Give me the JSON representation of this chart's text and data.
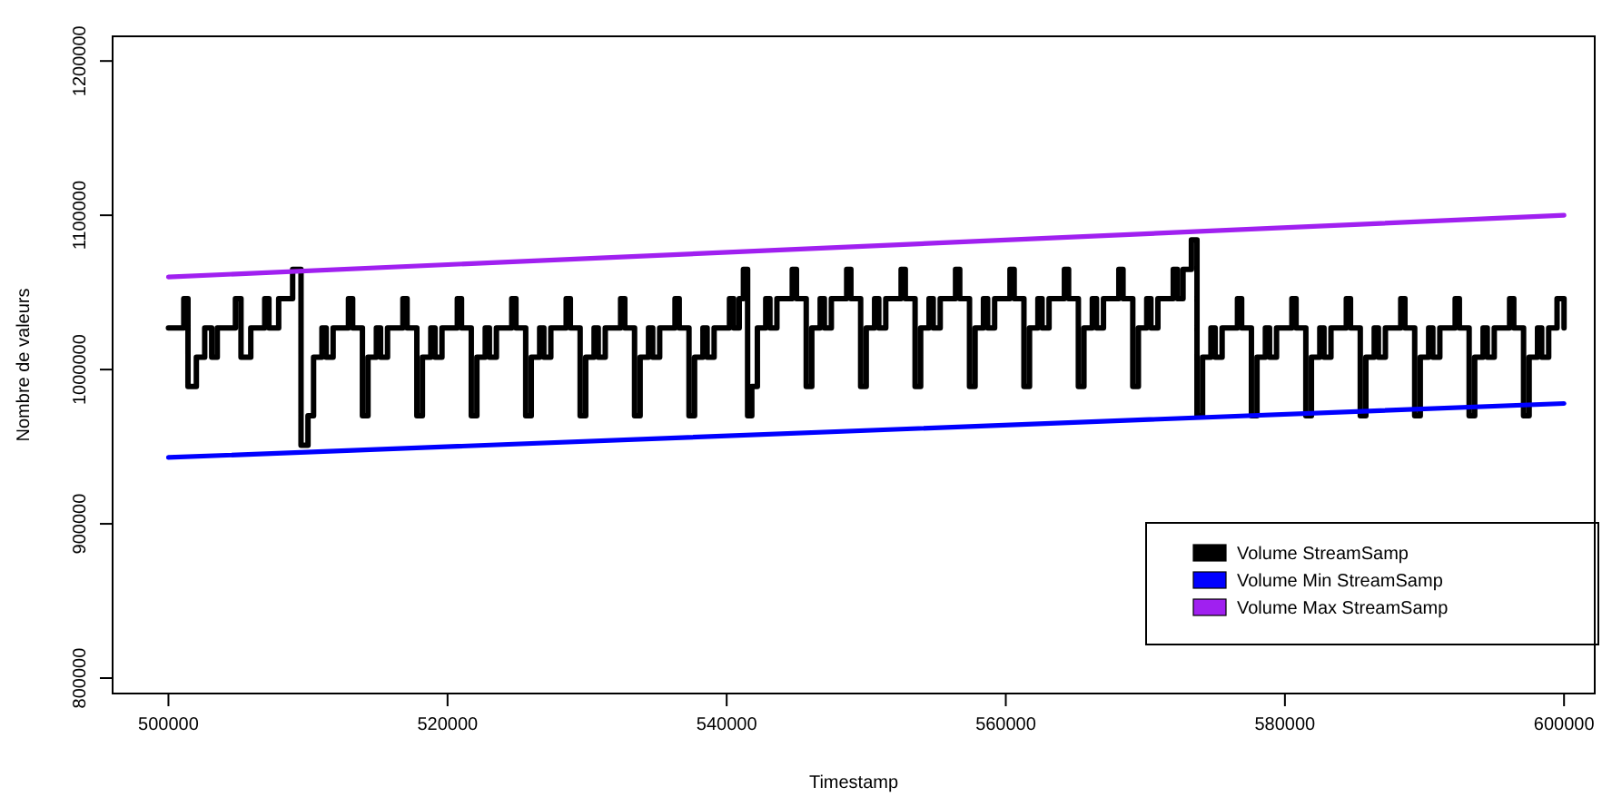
{
  "chart_data": {
    "type": "line",
    "xlabel": "Timestamp",
    "ylabel": "Nombre de valeurs",
    "xlim": [
      496000,
      602200
    ],
    "xticks": [
      500000,
      520000,
      540000,
      560000,
      580000,
      600000
    ],
    "ylim": [
      790000,
      1216000
    ],
    "yticks": [
      800000,
      900000,
      1000000,
      1100000,
      1200000
    ],
    "grid": false,
    "legend": "bottom right",
    "marker": "none",
    "line_style": "solid",
    "series": [
      {
        "name": "Volume StreamSamp",
        "color": "#000000",
        "type": "step",
        "x": [
          500000,
          501100,
          501400,
          502000,
          502600,
          503100,
          503500,
          504800,
          505200,
          505900,
          506900,
          507200,
          507900,
          508900,
          509500,
          510000,
          510400,
          511000,
          511300,
          511800,
          512900,
          513200,
          513900,
          514300,
          514900,
          515200,
          515700,
          516800,
          517100,
          517800,
          518200,
          518800,
          519100,
          519600,
          520700,
          521000,
          521700,
          522100,
          522700,
          523000,
          523500,
          524600,
          524900,
          525600,
          526000,
          526600,
          526900,
          527400,
          528500,
          528800,
          529500,
          529900,
          530500,
          530800,
          531300,
          532400,
          532700,
          533400,
          533800,
          534400,
          534700,
          535200,
          536300,
          536600,
          537300,
          537700,
          538300,
          538600,
          539100,
          540200,
          540500,
          540900,
          541200,
          541500,
          541800,
          542200,
          542800,
          543100,
          543600,
          544700,
          545000,
          545700,
          546100,
          546700,
          547000,
          547500,
          548600,
          548900,
          549600,
          550000,
          550600,
          550900,
          551400,
          552500,
          552800,
          553500,
          553900,
          554500,
          554800,
          555300,
          556400,
          556700,
          557400,
          557800,
          558400,
          558700,
          559200,
          560300,
          560600,
          561300,
          561700,
          562300,
          562600,
          563100,
          564200,
          564500,
          565200,
          565600,
          566200,
          566500,
          567000,
          568100,
          568400,
          569100,
          569500,
          570100,
          570400,
          570900,
          572000,
          572300,
          572700,
          573300,
          573700,
          574100,
          574700,
          575000,
          575500,
          576600,
          576900,
          577600,
          578000,
          578600,
          578900,
          579400,
          580500,
          580800,
          581500,
          581900,
          582500,
          582800,
          583300,
          584400,
          584700,
          585400,
          585800,
          586400,
          586700,
          587200,
          588300,
          588600,
          589300,
          589700,
          590300,
          590600,
          591100,
          592200,
          592500,
          593200,
          593600,
          594200,
          594500,
          595000,
          596100,
          596400,
          597100,
          597500,
          598100,
          598400,
          598900,
          599500,
          600000
        ],
        "values": [
          1027000,
          1046000,
          989000,
          1008000,
          1027000,
          1008000,
          1027000,
          1046000,
          1008000,
          1027000,
          1046000,
          1027000,
          1046000,
          1065000,
          951000,
          970000,
          1008000,
          1027000,
          1008000,
          1027000,
          1046000,
          1027000,
          970000,
          1008000,
          1027000,
          1008000,
          1027000,
          1046000,
          1027000,
          970000,
          1008000,
          1027000,
          1008000,
          1027000,
          1046000,
          1027000,
          970000,
          1008000,
          1027000,
          1008000,
          1027000,
          1046000,
          1027000,
          970000,
          1008000,
          1027000,
          1008000,
          1027000,
          1046000,
          1027000,
          970000,
          1008000,
          1027000,
          1008000,
          1027000,
          1046000,
          1027000,
          970000,
          1008000,
          1027000,
          1008000,
          1027000,
          1046000,
          1027000,
          970000,
          1008000,
          1027000,
          1008000,
          1027000,
          1046000,
          1027000,
          1046000,
          1065000,
          970000,
          989000,
          1027000,
          1046000,
          1027000,
          1046000,
          1065000,
          1046000,
          989000,
          1027000,
          1046000,
          1027000,
          1046000,
          1065000,
          1046000,
          989000,
          1027000,
          1046000,
          1027000,
          1046000,
          1065000,
          1046000,
          989000,
          1027000,
          1046000,
          1027000,
          1046000,
          1065000,
          1046000,
          989000,
          1027000,
          1046000,
          1027000,
          1046000,
          1065000,
          1046000,
          989000,
          1027000,
          1046000,
          1027000,
          1046000,
          1065000,
          1046000,
          989000,
          1027000,
          1046000,
          1027000,
          1046000,
          1065000,
          1046000,
          989000,
          1027000,
          1046000,
          1027000,
          1046000,
          1065000,
          1046000,
          1065000,
          1084000,
          970000,
          1008000,
          1027000,
          1008000,
          1027000,
          1046000,
          1027000,
          970000,
          1008000,
          1027000,
          1008000,
          1027000,
          1046000,
          1027000,
          970000,
          1008000,
          1027000,
          1008000,
          1027000,
          1046000,
          1027000,
          970000,
          1008000,
          1027000,
          1008000,
          1027000,
          1046000,
          1027000,
          970000,
          1008000,
          1027000,
          1008000,
          1027000,
          1046000,
          1027000,
          970000,
          1008000,
          1027000,
          1008000,
          1027000,
          1046000,
          1027000,
          970000,
          1008000,
          1027000,
          1008000,
          1027000,
          1046000,
          1027000
        ]
      },
      {
        "name": "Volume Min StreamSamp",
        "color": "#0000ff",
        "x": [
          500000,
          600000
        ],
        "values": [
          943000,
          978000
        ]
      },
      {
        "name": "Volume Max StreamSamp",
        "color": "#a020f0",
        "x": [
          500000,
          600000
        ],
        "values": [
          1060000,
          1100000
        ]
      }
    ]
  }
}
